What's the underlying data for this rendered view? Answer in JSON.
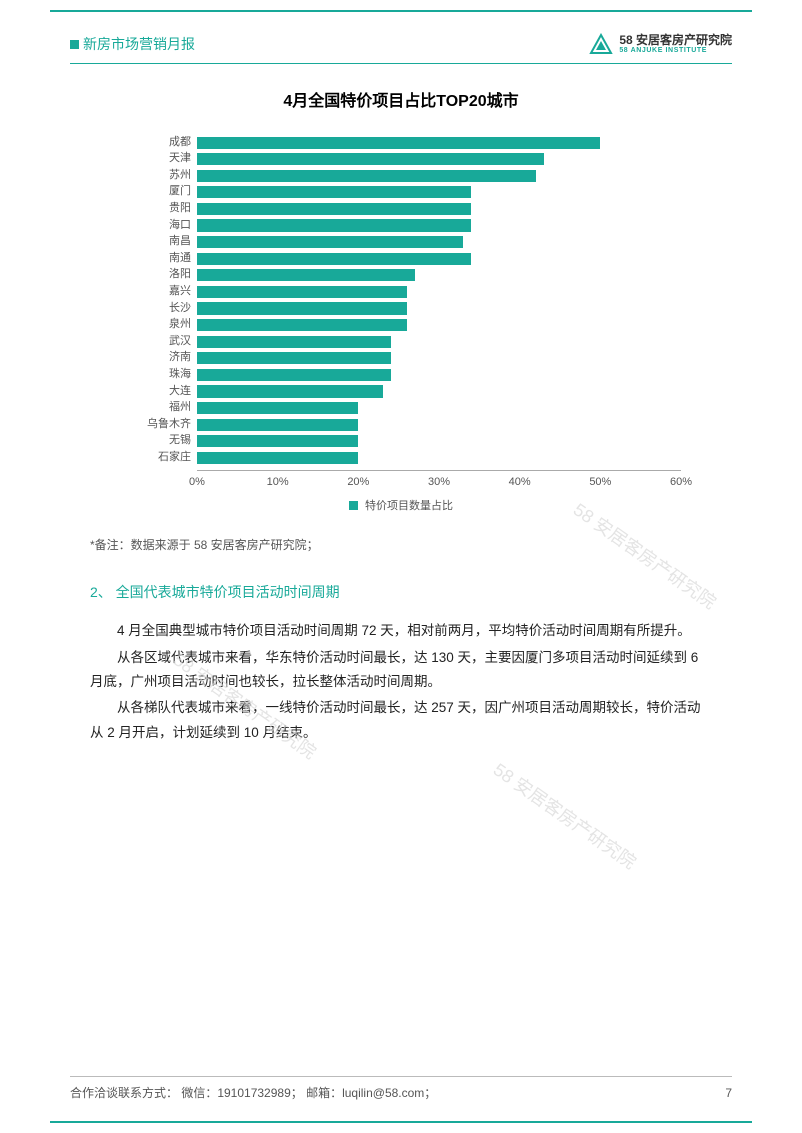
{
  "accent_color": "#18a999",
  "header": {
    "left_title": "新房市场营销月报",
    "brand_cn": "58 安居客房产研究院",
    "brand_en": "58 ANJUKE INSTITUTE"
  },
  "chart": {
    "type": "bar-horizontal",
    "title": "4月全国特价项目占比TOP20城市",
    "bar_color": "#18a999",
    "background_color": "#ffffff",
    "grid_color": "#d0d0d0",
    "title_fontsize": 16,
    "label_fontsize": 11,
    "xlim": [
      0,
      60
    ],
    "xtick_step": 10,
    "xticks": [
      "0%",
      "10%",
      "20%",
      "30%",
      "40%",
      "50%",
      "60%"
    ],
    "categories": [
      "成都",
      "天津",
      "苏州",
      "厦门",
      "贵阳",
      "海口",
      "南昌",
      "南通",
      "洛阳",
      "嘉兴",
      "长沙",
      "泉州",
      "武汉",
      "济南",
      "珠海",
      "大连",
      "福州",
      "乌鲁木齐",
      "无锡",
      "石家庄"
    ],
    "values": [
      50,
      43,
      42,
      34,
      34,
      34,
      33,
      34,
      27,
      26,
      26,
      26,
      24,
      24,
      24,
      23,
      20,
      20,
      20,
      20
    ],
    "legend_label": "特价项目数量占比"
  },
  "note": "*备注：数据来源于 58 安居客房产研究院；",
  "section": {
    "heading": "2、 全国代表城市特价项目活动时间周期",
    "paragraphs": [
      "4 月全国典型城市特价项目活动时间周期 72 天，相对前两月，平均特价活动时间周期有所提升。",
      "从各区域代表城市来看，华东特价活动时间最长，达 130 天，主要因厦门多项目活动时间延续到 6 月底，广州项目活动时间也较长，拉长整体活动时间周期。",
      "从各梯队代表城市来看，一线特价活动时间最长，达 257 天，因广州项目活动周期较长，特价活动从 2 月开启，计划延续到 10 月结束。"
    ]
  },
  "watermark_text": "58 安居客房产研究院",
  "footer": {
    "contact": "合作洽谈联系方式：  微信：19101732989；  邮箱：luqilin@58.com；",
    "page_number": "7"
  }
}
